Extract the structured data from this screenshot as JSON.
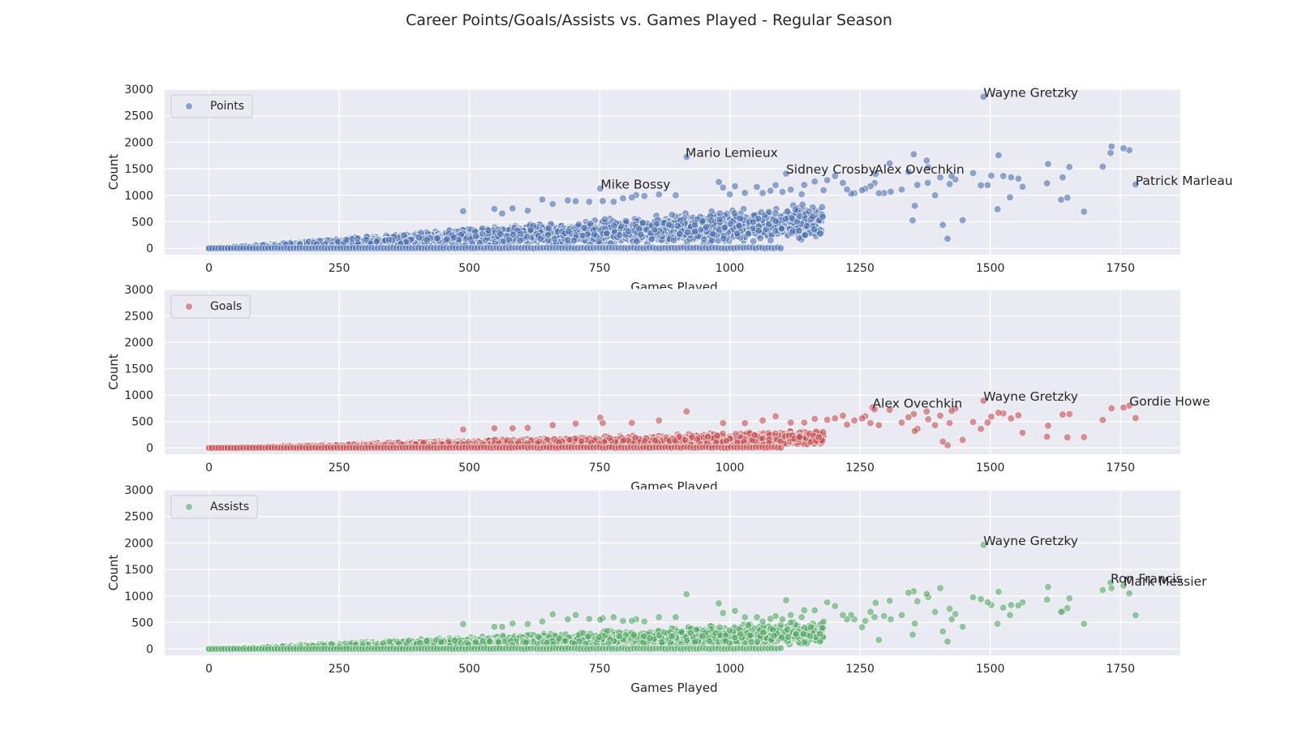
{
  "chart_data": {
    "title": "Career Points/Goals/Assists vs. Games Played - Regular Season",
    "type": "scatter",
    "grid": true,
    "shared": {
      "xlabel": "Games Played",
      "ylabel": "Count",
      "xlim": [
        -85,
        1865
      ],
      "ylim": [
        -120,
        3000
      ],
      "xticks": [
        0,
        250,
        500,
        750,
        1000,
        1250,
        1500,
        1750
      ],
      "yticks": [
        0,
        500,
        1000,
        1500,
        2000,
        2500,
        3000
      ]
    },
    "panels": [
      {
        "legend": "Points",
        "legend_position": "top-left",
        "color": "#4c72b0",
        "outliers": [
          [
            1487,
            2857
          ],
          [
            917,
            1723
          ],
          [
            1108,
            1409
          ],
          [
            1280,
            1400
          ],
          [
            751,
            1126
          ],
          [
            1779,
            1204
          ],
          [
            1767,
            1850
          ],
          [
            1756,
            1887
          ],
          [
            1733,
            1921
          ],
          [
            1731,
            1798
          ],
          [
            1716,
            1541
          ],
          [
            1680,
            691
          ],
          [
            1652,
            1533
          ],
          [
            1648,
            954
          ],
          [
            1639,
            1338
          ],
          [
            1636,
            917
          ],
          [
            1611,
            1590
          ],
          [
            1609,
            1226
          ],
          [
            1562,
            1162
          ],
          [
            1554,
            1313
          ],
          [
            1540,
            1338
          ],
          [
            1538,
            961
          ],
          [
            1525,
            1364
          ],
          [
            1516,
            1755
          ],
          [
            1514,
            738
          ],
          [
            1502,
            1369
          ],
          [
            1495,
            1193
          ],
          [
            1482,
            1188
          ],
          [
            1467,
            1419
          ],
          [
            1447,
            530
          ],
          [
            1433,
            1300
          ],
          [
            1426,
            1362
          ],
          [
            1422,
            1212
          ],
          [
            1418,
            182
          ],
          [
            1409,
            442
          ],
          [
            1404,
            1338
          ],
          [
            1394,
            1000
          ],
          [
            1381,
            1529
          ],
          [
            1380,
            1234
          ],
          [
            1378,
            1656
          ],
          [
            1360,
            1196
          ],
          [
            1355,
            803
          ],
          [
            1353,
            1773
          ],
          [
            1351,
            527
          ],
          [
            1343,
            1442
          ],
          [
            1330,
            1108
          ],
          [
            1309,
            1067
          ],
          [
            1307,
            1600
          ],
          [
            1296,
            1043
          ],
          [
            1286,
            1040
          ],
          [
            1278,
            1230
          ],
          [
            1270,
            1171
          ],
          [
            1260,
            1124
          ],
          [
            1254,
            1094
          ],
          [
            1239,
            1040
          ],
          [
            1233,
            1031
          ],
          [
            1225,
            1109
          ],
          [
            1217,
            1234
          ],
          [
            1202,
            1364
          ],
          [
            1187,
            1286
          ],
          [
            1180,
            1095
          ],
          [
            1163,
            1260
          ],
          [
            1143,
            1195
          ],
          [
            1138,
            1020
          ],
          [
            1117,
            1106
          ],
          [
            1101,
            1064
          ],
          [
            1088,
            1193
          ],
          [
            1078,
            1085
          ],
          [
            1063,
            1044
          ],
          [
            1052,
            1157
          ],
          [
            1029,
            1046
          ],
          [
            1010,
            1171
          ],
          [
            987,
            1147
          ],
          [
            979,
            1250
          ],
          [
            896,
            1000
          ],
          [
            864,
            1015
          ],
          [
            836,
            986
          ],
          [
            820,
            1004
          ],
          [
            812,
            958
          ],
          [
            795,
            941
          ],
          [
            777,
            879
          ],
          [
            756,
            893
          ],
          [
            730,
            879
          ],
          [
            704,
            889
          ],
          [
            689,
            905
          ],
          [
            660,
            835
          ],
          [
            640,
            920
          ],
          [
            612,
            711
          ],
          [
            583,
            754
          ],
          [
            563,
            657
          ],
          [
            548,
            742
          ],
          [
            488,
            702
          ],
          [
            1000,
            1018
          ]
        ],
        "annotations": [
          {
            "label": "Wayne Gretzky",
            "x": 1487,
            "y": 2857
          },
          {
            "label": "Mario Lemieux",
            "x": 915,
            "y": 1723
          },
          {
            "label": "Sidney Crosby",
            "x": 1108,
            "y": 1409
          },
          {
            "label": "Alex Ovechkin",
            "x": 1278,
            "y": 1409
          },
          {
            "label": "Mike Bossy",
            "x": 752,
            "y": 1126
          },
          {
            "label": "Patrick Marleau",
            "x": 1779,
            "y": 1197
          }
        ],
        "bulk": {
          "slope": 0.42,
          "spread": 0.42,
          "n": 3200
        }
      },
      {
        "legend": "Goals",
        "legend_position": "top-left",
        "color": "#c44e52",
        "outliers": [
          [
            1487,
            894
          ],
          [
            1274,
            766
          ],
          [
            1767,
            801
          ],
          [
            1779,
            566
          ],
          [
            1756,
            764
          ],
          [
            1733,
            750
          ],
          [
            1716,
            530
          ],
          [
            1680,
            205
          ],
          [
            1652,
            640
          ],
          [
            1648,
            200
          ],
          [
            1639,
            632
          ],
          [
            1611,
            420
          ],
          [
            1609,
            210
          ],
          [
            1562,
            286
          ],
          [
            1554,
            618
          ],
          [
            1540,
            558
          ],
          [
            1525,
            653
          ],
          [
            1516,
            666
          ],
          [
            1502,
            591
          ],
          [
            1495,
            480
          ],
          [
            1482,
            360
          ],
          [
            1467,
            490
          ],
          [
            1447,
            150
          ],
          [
            1433,
            744
          ],
          [
            1426,
            703
          ],
          [
            1422,
            470
          ],
          [
            1418,
            50
          ],
          [
            1409,
            120
          ],
          [
            1404,
            610
          ],
          [
            1394,
            430
          ],
          [
            1381,
            542
          ],
          [
            1378,
            690
          ],
          [
            1360,
            360
          ],
          [
            1355,
            320
          ],
          [
            1353,
            640
          ],
          [
            1343,
            580
          ],
          [
            1330,
            480
          ],
          [
            1307,
            720
          ],
          [
            1286,
            430
          ],
          [
            1278,
            730
          ],
          [
            1270,
            470
          ],
          [
            1260,
            600
          ],
          [
            1254,
            560
          ],
          [
            1239,
            520
          ],
          [
            1225,
            440
          ],
          [
            1217,
            610
          ],
          [
            1202,
            560
          ],
          [
            1187,
            532
          ],
          [
            1163,
            550
          ],
          [
            1143,
            480
          ],
          [
            1117,
            480
          ],
          [
            1088,
            600
          ],
          [
            1063,
            520
          ],
          [
            1029,
            468
          ],
          [
            987,
            470
          ],
          [
            917,
            690
          ],
          [
            751,
            573
          ],
          [
            864,
            520
          ],
          [
            812,
            474
          ],
          [
            756,
            470
          ],
          [
            704,
            460
          ],
          [
            660,
            430
          ],
          [
            612,
            380
          ],
          [
            583,
            370
          ],
          [
            548,
            370
          ],
          [
            488,
            347
          ]
        ],
        "annotations": [
          {
            "label": "Alex Ovechkin",
            "x": 1274,
            "y": 766
          },
          {
            "label": "Wayne Gretzky",
            "x": 1487,
            "y": 894
          },
          {
            "label": "Gordie Howe",
            "x": 1767,
            "y": 801
          }
        ],
        "bulk": {
          "slope": 0.16,
          "spread": 0.45,
          "n": 3200
        }
      },
      {
        "legend": "Assists",
        "legend_position": "top-left",
        "color": "#55a868",
        "outliers": [
          [
            1487,
            1963
          ],
          [
            1731,
            1249
          ],
          [
            1756,
            1193
          ],
          [
            1767,
            1050
          ],
          [
            1779,
            637
          ],
          [
            1716,
            1111
          ],
          [
            1733,
            1147
          ],
          [
            1680,
            475
          ],
          [
            1652,
            955
          ],
          [
            1648,
            770
          ],
          [
            1639,
            710
          ],
          [
            1636,
            700
          ],
          [
            1611,
            1170
          ],
          [
            1609,
            930
          ],
          [
            1562,
            880
          ],
          [
            1554,
            820
          ],
          [
            1540,
            830
          ],
          [
            1538,
            640
          ],
          [
            1525,
            780
          ],
          [
            1516,
            1079
          ],
          [
            1514,
            475
          ],
          [
            1502,
            830
          ],
          [
            1495,
            880
          ],
          [
            1482,
            940
          ],
          [
            1467,
            975
          ],
          [
            1447,
            420
          ],
          [
            1433,
            660
          ],
          [
            1426,
            560
          ],
          [
            1422,
            760
          ],
          [
            1418,
            140
          ],
          [
            1409,
            330
          ],
          [
            1404,
            1150
          ],
          [
            1394,
            700
          ],
          [
            1381,
            980
          ],
          [
            1378,
            1040
          ],
          [
            1360,
            900
          ],
          [
            1355,
            480
          ],
          [
            1353,
            1090
          ],
          [
            1351,
            270
          ],
          [
            1343,
            1060
          ],
          [
            1330,
            640
          ],
          [
            1309,
            560
          ],
          [
            1307,
            910
          ],
          [
            1296,
            620
          ],
          [
            1286,
            170
          ],
          [
            1280,
            870
          ],
          [
            1278,
            600
          ],
          [
            1270,
            700
          ],
          [
            1260,
            530
          ],
          [
            1254,
            410
          ],
          [
            1239,
            560
          ],
          [
            1233,
            640
          ],
          [
            1225,
            560
          ],
          [
            1217,
            640
          ],
          [
            1202,
            810
          ],
          [
            1187,
            880
          ],
          [
            1180,
            520
          ],
          [
            1163,
            730
          ],
          [
            1143,
            730
          ],
          [
            1138,
            600
          ],
          [
            1117,
            640
          ],
          [
            1108,
            920
          ],
          [
            1101,
            560
          ],
          [
            1088,
            620
          ],
          [
            1078,
            570
          ],
          [
            1063,
            520
          ],
          [
            1052,
            600
          ],
          [
            1029,
            600
          ],
          [
            1010,
            720
          ],
          [
            987,
            680
          ],
          [
            979,
            860
          ],
          [
            917,
            1033
          ],
          [
            896,
            600
          ],
          [
            864,
            600
          ],
          [
            836,
            520
          ],
          [
            820,
            560
          ],
          [
            812,
            530
          ],
          [
            795,
            530
          ],
          [
            777,
            600
          ],
          [
            756,
            580
          ],
          [
            751,
            553
          ],
          [
            730,
            570
          ],
          [
            704,
            640
          ],
          [
            689,
            560
          ],
          [
            660,
            655
          ],
          [
            640,
            520
          ],
          [
            612,
            470
          ],
          [
            583,
            480
          ],
          [
            563,
            420
          ],
          [
            548,
            420
          ],
          [
            488,
            470
          ]
        ],
        "annotations": [
          {
            "label": "Wayne Gretzky",
            "x": 1487,
            "y": 1963
          },
          {
            "label": "Ron Francis",
            "x": 1731,
            "y": 1249
          },
          {
            "label": "Mark Messier",
            "x": 1756,
            "y": 1193
          }
        ],
        "bulk": {
          "slope": 0.26,
          "spread": 0.42,
          "n": 3200
        }
      }
    ]
  }
}
